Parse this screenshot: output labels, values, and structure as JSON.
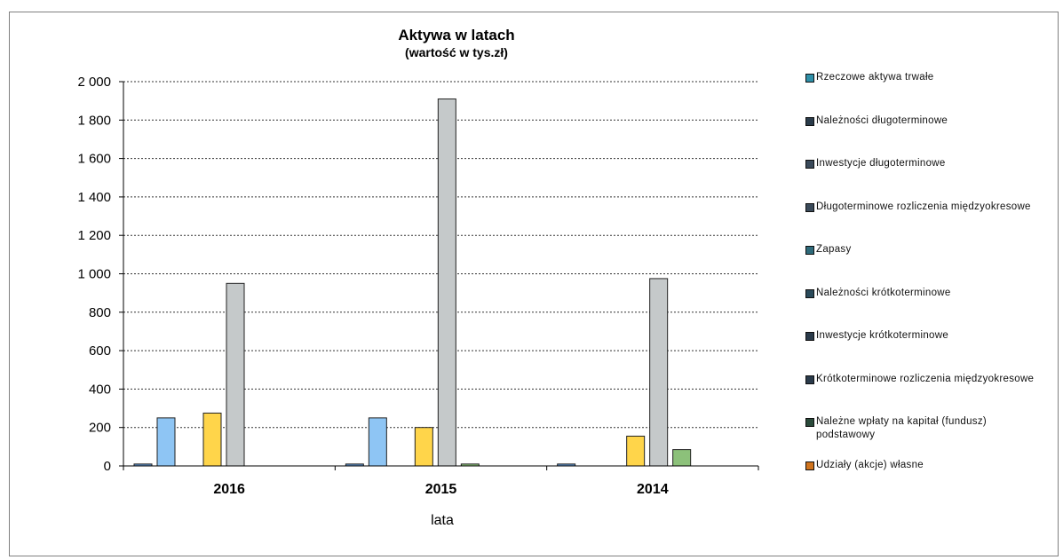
{
  "chart_data": {
    "type": "bar",
    "title": "Aktywa w latach",
    "subtitle": "(wartość w tys.zł)",
    "xlabel": "lata",
    "ylabel": "",
    "categories": [
      "2016",
      "2015",
      "2014"
    ],
    "ylim": [
      0,
      2000
    ],
    "yticks": [
      0,
      200,
      400,
      600,
      800,
      1000,
      1200,
      1400,
      1600,
      1800,
      2000
    ],
    "ytick_labels": [
      "0",
      "200",
      "400",
      "600",
      "800",
      "1 000",
      "1 200",
      "1 400",
      "1 600",
      "1 800",
      "2 000"
    ],
    "grid": true,
    "legend_position": "right",
    "series": [
      {
        "name": "Rzeczowe aktywa trwałe",
        "color": "#5b8fc7",
        "values": [
          10,
          10,
          10
        ]
      },
      {
        "name": "Należności długoterminowe",
        "color": "#8ec5f4",
        "values": [
          250,
          250,
          0
        ]
      },
      {
        "name": "Inwestycje długoterminowe",
        "color": "#4a6f9a",
        "values": [
          0,
          0,
          0
        ]
      },
      {
        "name": "Długoterminowe rozliczenia międzyokresowe",
        "color": "#ffd54a",
        "values": [
          275,
          200,
          155
        ]
      },
      {
        "name": "Zapasy",
        "color": "#c5c9ca",
        "values": [
          950,
          1910,
          975
        ]
      },
      {
        "name": "Należności krótkoterminowe",
        "color": "#8cc17a",
        "values": [
          0,
          10,
          85
        ]
      },
      {
        "name": "Inwestycje krótkoterminowe",
        "color": "#dcdcdc",
        "values": [
          0,
          0,
          0
        ]
      },
      {
        "name": "Krótkoterminowe rozliczenia międzyokresowe",
        "color": "#eeeeee",
        "values": [
          0,
          0,
          0
        ]
      },
      {
        "name": "Należne wpłaty na kapitał (fundusz) podstawowy",
        "color": "#7fbf6a",
        "values": [
          0,
          0,
          0
        ]
      },
      {
        "name": "Udziały (akcje) własne",
        "color": "#e8903a",
        "values": [
          0,
          0,
          0
        ]
      }
    ],
    "legend_swatch_colors": [
      "#2e8fa8",
      "#2a3b4a",
      "#3a4a5a",
      "#3a4a5a",
      "#2e6a7a",
      "#2a4a5a",
      "#2a3a4a",
      "#2a3a4a",
      "#2a4a3a",
      "#d0741e"
    ]
  }
}
